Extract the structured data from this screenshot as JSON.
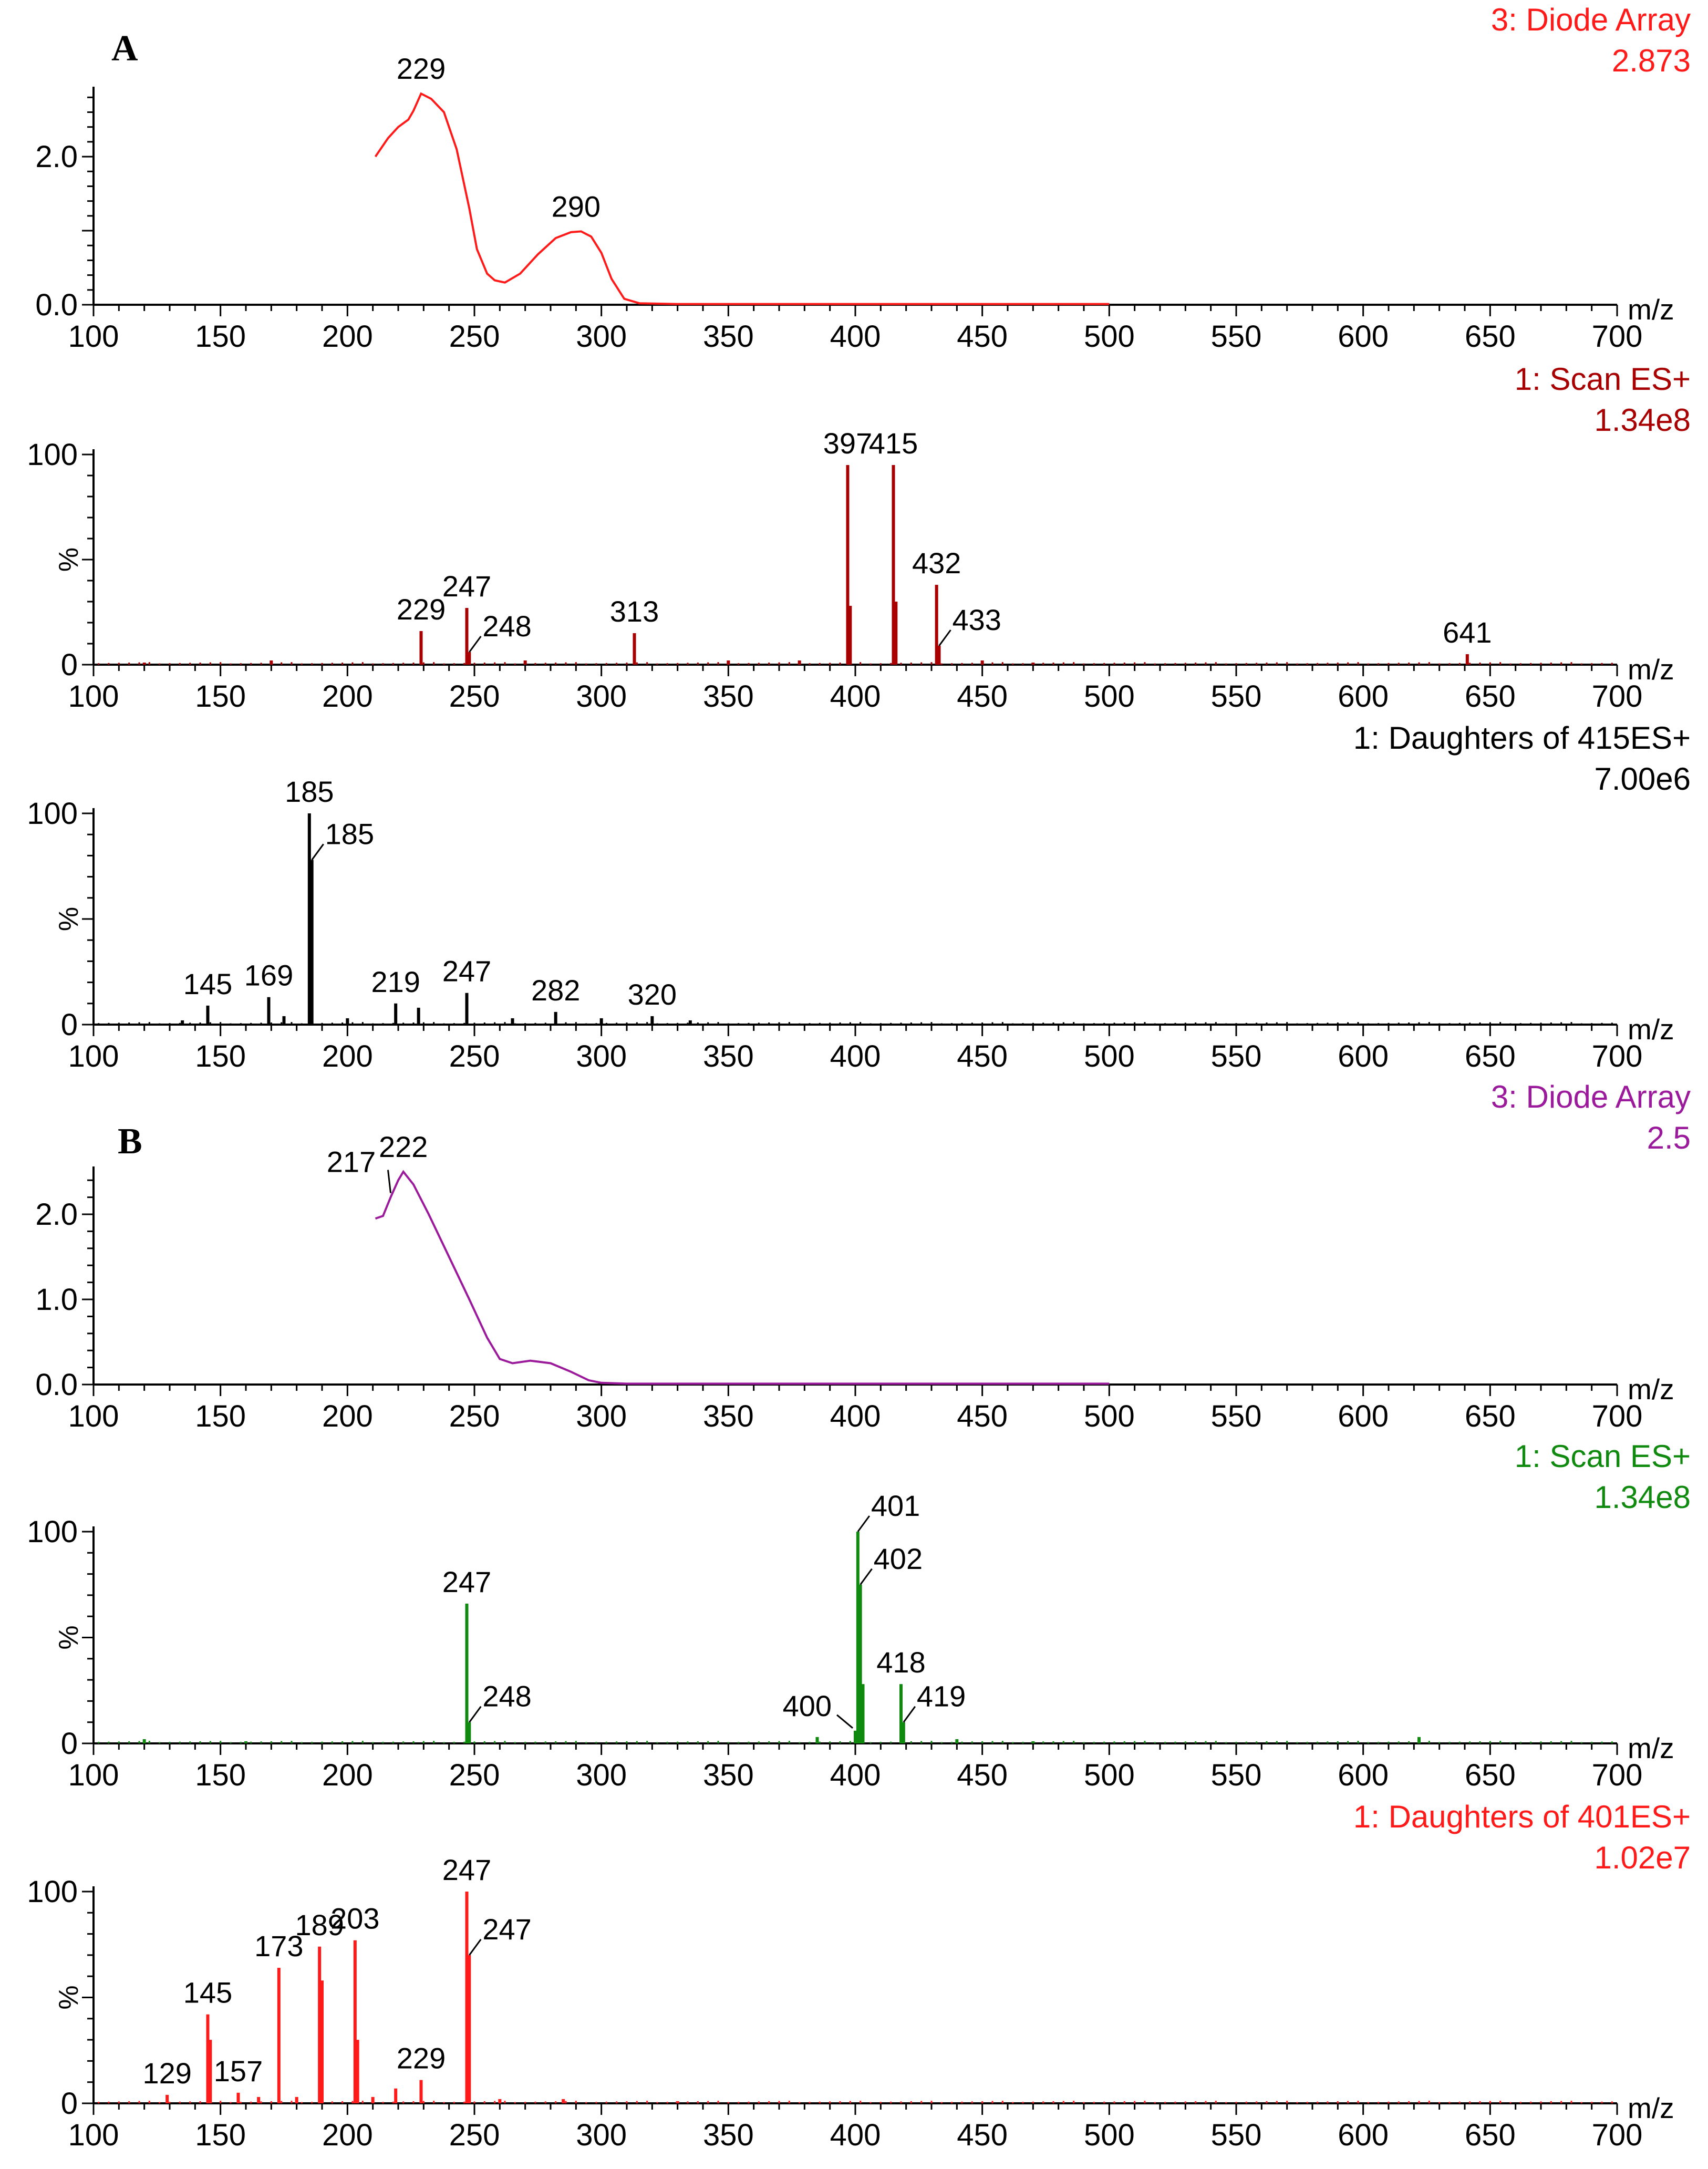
{
  "figure": {
    "panel_labels": [
      "A",
      "B"
    ],
    "x_axis_label": "m/z",
    "y_percent_label": "%"
  },
  "chart_data": [
    {
      "type": "line",
      "title": "3: Diode Array",
      "scale": "2.873",
      "color": "#ff1a1a",
      "xlim": [
        100,
        700
      ],
      "ylim": [
        0,
        2.873
      ],
      "yticks": [
        "0.0",
        "2.0"
      ],
      "xticks": [
        "100",
        "150",
        "200",
        "250",
        "300",
        "350",
        "400",
        "450",
        "500",
        "550",
        "600",
        "650",
        "700"
      ],
      "xlabel": "m/z",
      "x": [
        211,
        216,
        220,
        224,
        226,
        229,
        233,
        238,
        243,
        248,
        251,
        255,
        258,
        262,
        268,
        275,
        282,
        288,
        292,
        296,
        300,
        304,
        309,
        315,
        330,
        400,
        500
      ],
      "y": [
        2.0,
        2.25,
        2.4,
        2.5,
        2.62,
        2.85,
        2.78,
        2.6,
        2.1,
        1.3,
        0.75,
        0.42,
        0.33,
        0.3,
        0.42,
        0.68,
        0.9,
        0.98,
        0.99,
        0.92,
        0.7,
        0.35,
        0.08,
        0.02,
        0.01,
        0.01,
        0.01
      ],
      "annotations": [
        {
          "text": "229",
          "x": 229,
          "y": 2.85
        },
        {
          "text": "290",
          "x": 290,
          "y": 0.99
        }
      ]
    },
    {
      "type": "bar",
      "title": "1: Scan ES+",
      "scale": "1.34e8",
      "color": "#a80000",
      "xlim": [
        100,
        700
      ],
      "ylim": [
        0,
        100
      ],
      "yticks": [
        "0",
        "100"
      ],
      "xticks": [
        "100",
        "150",
        "200",
        "250",
        "300",
        "350",
        "400",
        "450",
        "500",
        "550",
        "600",
        "650",
        "700"
      ],
      "ylabel": "%",
      "xlabel": "m/z",
      "peaks": [
        {
          "x": 229,
          "y": 16
        },
        {
          "x": 247,
          "y": 27
        },
        {
          "x": 248,
          "y": 6
        },
        {
          "x": 313,
          "y": 15
        },
        {
          "x": 397,
          "y": 95
        },
        {
          "x": 398,
          "y": 28
        },
        {
          "x": 415,
          "y": 95
        },
        {
          "x": 416,
          "y": 30
        },
        {
          "x": 432,
          "y": 38
        },
        {
          "x": 433,
          "y": 9
        },
        {
          "x": 641,
          "y": 5
        },
        {
          "x": 120,
          "y": 1
        },
        {
          "x": 170,
          "y": 2
        },
        {
          "x": 270,
          "y": 2
        },
        {
          "x": 350,
          "y": 2
        },
        {
          "x": 378,
          "y": 2
        },
        {
          "x": 450,
          "y": 2
        },
        {
          "x": 470,
          "y": 1
        }
      ],
      "annotations": [
        {
          "text": "229",
          "x": 229
        },
        {
          "text": "247",
          "x": 247
        },
        {
          "text": "248",
          "x": 248
        },
        {
          "text": "313",
          "x": 313
        },
        {
          "text": "397",
          "x": 397
        },
        {
          "text": "415",
          "x": 415
        },
        {
          "text": "432",
          "x": 432
        },
        {
          "text": "433",
          "x": 433
        },
        {
          "text": "641",
          "x": 641
        }
      ]
    },
    {
      "type": "bar",
      "title": "1: Daughters of 415ES+",
      "scale": "7.00e6",
      "color": "#000000",
      "xlim": [
        100,
        700
      ],
      "ylim": [
        0,
        100
      ],
      "yticks": [
        "0",
        "100"
      ],
      "xticks": [
        "100",
        "150",
        "200",
        "250",
        "300",
        "350",
        "400",
        "450",
        "500",
        "550",
        "600",
        "650",
        "700"
      ],
      "ylabel": "%",
      "xlabel": "m/z",
      "peaks": [
        {
          "x": 145,
          "y": 9
        },
        {
          "x": 169,
          "y": 13
        },
        {
          "x": 185,
          "y": 100
        },
        {
          "x": 186,
          "y": 78
        },
        {
          "x": 219,
          "y": 10
        },
        {
          "x": 228,
          "y": 8
        },
        {
          "x": 247,
          "y": 15
        },
        {
          "x": 282,
          "y": 6
        },
        {
          "x": 320,
          "y": 4
        },
        {
          "x": 175,
          "y": 4
        },
        {
          "x": 200,
          "y": 3
        },
        {
          "x": 265,
          "y": 3
        },
        {
          "x": 300,
          "y": 3
        },
        {
          "x": 335,
          "y": 2
        },
        {
          "x": 135,
          "y": 2
        }
      ],
      "annotations": [
        {
          "text": "145",
          "x": 145
        },
        {
          "text": "169",
          "x": 169
        },
        {
          "text": "185",
          "x": 185
        },
        {
          "text": "185",
          "x": 186
        },
        {
          "text": "219",
          "x": 219
        },
        {
          "text": "247",
          "x": 247
        },
        {
          "text": "282",
          "x": 282
        },
        {
          "text": "320",
          "x": 320
        }
      ]
    },
    {
      "type": "line",
      "title": "3: Diode Array",
      "scale": "2.5",
      "color": "#9b1a9b",
      "xlim": [
        100,
        700
      ],
      "ylim": [
        0,
        2.5
      ],
      "yticks": [
        "0.0",
        "1.0",
        "2.0"
      ],
      "xticks": [
        "100",
        "150",
        "200",
        "250",
        "300",
        "350",
        "400",
        "450",
        "500",
        "550",
        "600",
        "650",
        "700"
      ],
      "xlabel": "m/z",
      "x": [
        211,
        214,
        217,
        220,
        222,
        226,
        232,
        240,
        248,
        255,
        260,
        265,
        272,
        280,
        288,
        295,
        300,
        310,
        350,
        400,
        500
      ],
      "y": [
        1.95,
        1.98,
        2.2,
        2.4,
        2.5,
        2.35,
        2.0,
        1.5,
        1.0,
        0.55,
        0.3,
        0.25,
        0.28,
        0.25,
        0.15,
        0.05,
        0.02,
        0.01,
        0.01,
        0.01,
        0.01
      ],
      "annotations": [
        {
          "text": "217",
          "x": 217,
          "y": 2.2
        },
        {
          "text": "222",
          "x": 222,
          "y": 2.5
        }
      ]
    },
    {
      "type": "bar",
      "title": "1: Scan ES+",
      "scale": "1.34e8",
      "color": "#0f8a0f",
      "xlim": [
        100,
        700
      ],
      "ylim": [
        0,
        100
      ],
      "yticks": [
        "0",
        "100"
      ],
      "xticks": [
        "100",
        "150",
        "200",
        "250",
        "300",
        "350",
        "400",
        "450",
        "500",
        "550",
        "600",
        "650",
        "700"
      ],
      "ylabel": "%",
      "xlabel": "m/z",
      "peaks": [
        {
          "x": 247,
          "y": 66
        },
        {
          "x": 248,
          "y": 10
        },
        {
          "x": 400,
          "y": 6
        },
        {
          "x": 401,
          "y": 100
        },
        {
          "x": 402,
          "y": 75
        },
        {
          "x": 403,
          "y": 28
        },
        {
          "x": 418,
          "y": 28
        },
        {
          "x": 419,
          "y": 10
        },
        {
          "x": 120,
          "y": 2
        },
        {
          "x": 160,
          "y": 1
        },
        {
          "x": 385,
          "y": 3
        },
        {
          "x": 440,
          "y": 2
        },
        {
          "x": 470,
          "y": 1
        },
        {
          "x": 622,
          "y": 3
        }
      ],
      "annotations": [
        {
          "text": "247",
          "x": 247
        },
        {
          "text": "248",
          "x": 248
        },
        {
          "text": "400",
          "x": 400
        },
        {
          "text": "401",
          "x": 401
        },
        {
          "text": "402",
          "x": 402
        },
        {
          "text": "418",
          "x": 418
        },
        {
          "text": "419",
          "x": 419
        }
      ]
    },
    {
      "type": "bar",
      "title": "1: Daughters of 401ES+",
      "scale": "1.02e7",
      "color": "#ff1a1a",
      "xlim": [
        100,
        700
      ],
      "ylim": [
        0,
        100
      ],
      "yticks": [
        "0",
        "100"
      ],
      "xticks": [
        "100",
        "150",
        "200",
        "250",
        "300",
        "350",
        "400",
        "450",
        "500",
        "550",
        "600",
        "650",
        "700"
      ],
      "ylabel": "%",
      "xlabel": "m/z",
      "peaks": [
        {
          "x": 129,
          "y": 4
        },
        {
          "x": 145,
          "y": 42
        },
        {
          "x": 146,
          "y": 30
        },
        {
          "x": 157,
          "y": 5
        },
        {
          "x": 173,
          "y": 64
        },
        {
          "x": 189,
          "y": 74
        },
        {
          "x": 190,
          "y": 58
        },
        {
          "x": 203,
          "y": 77
        },
        {
          "x": 204,
          "y": 30
        },
        {
          "x": 219,
          "y": 7
        },
        {
          "x": 229,
          "y": 11
        },
        {
          "x": 247,
          "y": 100
        },
        {
          "x": 248,
          "y": 70
        },
        {
          "x": 165,
          "y": 3
        },
        {
          "x": 180,
          "y": 3
        },
        {
          "x": 210,
          "y": 3
        },
        {
          "x": 260,
          "y": 2
        },
        {
          "x": 285,
          "y": 2
        },
        {
          "x": 330,
          "y": 1
        }
      ],
      "annotations": [
        {
          "text": "129",
          "x": 129
        },
        {
          "text": "145",
          "x": 145
        },
        {
          "text": "157",
          "x": 157
        },
        {
          "text": "173",
          "x": 173
        },
        {
          "text": "189",
          "x": 189
        },
        {
          "text": "203",
          "x": 203
        },
        {
          "text": "229",
          "x": 229
        },
        {
          "text": "247",
          "x": 247
        },
        {
          "text": "247",
          "x": 248
        }
      ]
    }
  ]
}
